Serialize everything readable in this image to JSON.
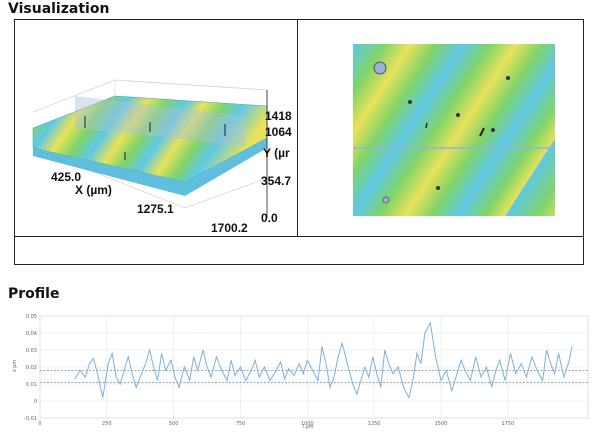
{
  "sections": {
    "visualization_title": "Visualization",
    "profile_title": "Profile"
  },
  "view3d": {
    "x_axis_label": "X (µm)",
    "x_ticks": [
      "425.0",
      "1275.1"
    ],
    "x_end": "1700.2",
    "y_axis_label": "Y (µr",
    "z_ticks": [
      "1418",
      "1064",
      "354.7",
      "0.0"
    ]
  },
  "colors": {
    "stripe_yellow": "#e8e25a",
    "stripe_green": "#7fd46a",
    "stripe_cyan": "#5fc8e6",
    "profile_line": "#7fb0d8",
    "grid": "#dde3ea",
    "ref_line": "#4a7ca8"
  },
  "chart_data": {
    "type": "line",
    "xlabel": "l µm",
    "ylabel": "z µm",
    "xlim": [
      0,
      2050
    ],
    "ylim": [
      -0.01,
      0.05
    ],
    "x_ticks": [
      0,
      250,
      500,
      750,
      1000,
      1250,
      1500,
      1750
    ],
    "y_ticks": [
      0.05,
      0.04,
      0.03,
      0.02,
      0.01,
      0,
      -0.01
    ],
    "y_tick_labels": [
      "0.05",
      "0.04",
      "0.03",
      "0.02",
      "0.01",
      "0",
      "-0.01"
    ],
    "x_tick_labels": [
      "0",
      "250",
      "500",
      "750",
      "1000",
      "1250",
      "1500",
      "1750"
    ],
    "reference_lines": [
      0.018,
      0.011
    ],
    "series": [
      {
        "x": [
          130,
          150,
          170,
          185,
          200,
          215,
          235,
          255,
          270,
          285,
          300,
          315,
          330,
          345,
          360,
          375,
          395,
          410,
          425,
          440,
          455,
          470,
          490,
          505,
          520,
          540,
          560,
          575,
          590,
          610,
          625,
          640,
          660,
          680,
          700,
          715,
          730,
          750,
          770,
          790,
          805,
          820,
          840,
          860,
          880,
          900,
          915,
          930,
          950,
          970,
          985,
          1000,
          1020,
          1040,
          1055,
          1070,
          1085,
          1100,
          1115,
          1130,
          1150,
          1170,
          1185,
          1200,
          1215,
          1230,
          1245,
          1260,
          1275,
          1290,
          1305,
          1320,
          1340,
          1360,
          1380,
          1395,
          1410,
          1425,
          1440,
          1460,
          1480,
          1500,
          1520,
          1540,
          1560,
          1575,
          1590,
          1610,
          1630,
          1650,
          1670,
          1690,
          1705,
          1720,
          1740,
          1760,
          1780,
          1800,
          1820,
          1840,
          1860,
          1880,
          1895,
          1910,
          1925,
          1940,
          1960,
          1980,
          1990
        ],
        "y": [
          0.013,
          0.018,
          0.014,
          0.022,
          0.025,
          0.016,
          0.002,
          0.022,
          0.028,
          0.014,
          0.01,
          0.018,
          0.026,
          0.016,
          0.008,
          0.014,
          0.022,
          0.03,
          0.02,
          0.012,
          0.028,
          0.018,
          0.024,
          0.014,
          0.008,
          0.02,
          0.012,
          0.026,
          0.018,
          0.03,
          0.02,
          0.014,
          0.026,
          0.018,
          0.012,
          0.024,
          0.015,
          0.02,
          0.012,
          0.018,
          0.024,
          0.014,
          0.02,
          0.012,
          0.017,
          0.023,
          0.013,
          0.019,
          0.015,
          0.022,
          0.016,
          0.024,
          0.018,
          0.012,
          0.032,
          0.022,
          0.008,
          0.014,
          0.026,
          0.034,
          0.022,
          0.01,
          0.004,
          0.012,
          0.02,
          0.014,
          0.026,
          0.016,
          0.008,
          0.03,
          0.022,
          0.016,
          0.02,
          0.008,
          0.002,
          0.012,
          0.028,
          0.022,
          0.04,
          0.046,
          0.026,
          0.012,
          0.018,
          0.006,
          0.016,
          0.024,
          0.018,
          0.012,
          0.026,
          0.014,
          0.02,
          0.008,
          0.018,
          0.024,
          0.012,
          0.028,
          0.016,
          0.022,
          0.014,
          0.026,
          0.018,
          0.012,
          0.03,
          0.022,
          0.016,
          0.028,
          0.014,
          0.024,
          0.032
        ]
      }
    ]
  }
}
